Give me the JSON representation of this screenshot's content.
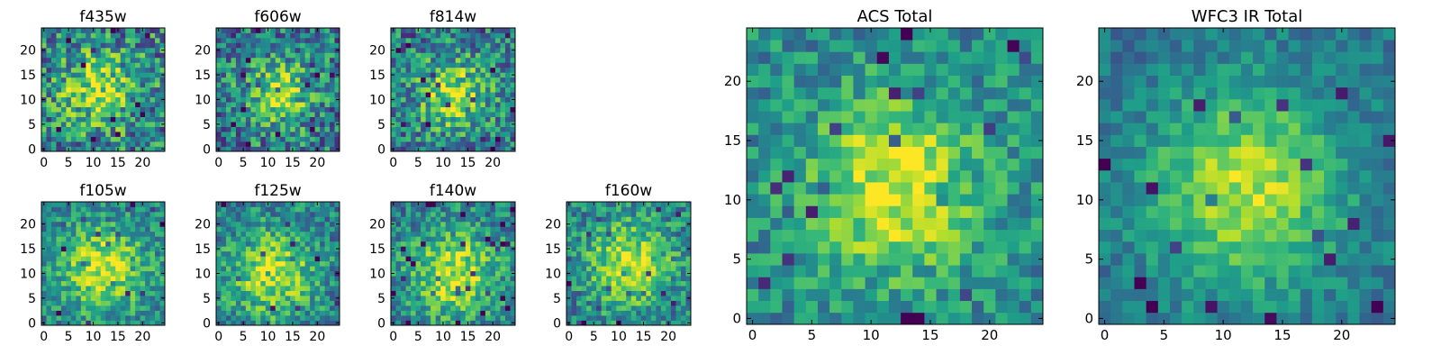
{
  "figure": {
    "background": "#ffffff",
    "colormap": "viridis"
  },
  "chart_data": [
    {
      "type": "heatmap",
      "title": "f435w",
      "xlim": [
        0,
        24
      ],
      "ylim": [
        0,
        24
      ],
      "xticks": [
        0,
        5,
        10,
        15,
        20
      ],
      "yticks": [
        0,
        5,
        10,
        15,
        20
      ],
      "center": [
        11,
        12
      ],
      "sigma": 5,
      "peak": 0.78,
      "noise": 0.34,
      "floor": 0.45,
      "seed": 11
    },
    {
      "type": "heatmap",
      "title": "f606w",
      "xlim": [
        0,
        24
      ],
      "ylim": [
        0,
        24
      ],
      "xticks": [
        0,
        5,
        10,
        15,
        20
      ],
      "yticks": [
        0,
        5,
        10,
        15,
        20
      ],
      "center": [
        12,
        11
      ],
      "sigma": 5,
      "peak": 0.8,
      "noise": 0.32,
      "floor": 0.4,
      "seed": 23
    },
    {
      "type": "heatmap",
      "title": "f814w",
      "xlim": [
        0,
        24
      ],
      "ylim": [
        0,
        24
      ],
      "xticks": [
        0,
        5,
        10,
        15,
        20
      ],
      "yticks": [
        0,
        5,
        10,
        15,
        20
      ],
      "center": [
        12,
        11
      ],
      "sigma": 5,
      "peak": 0.82,
      "noise": 0.3,
      "floor": 0.42,
      "seed": 37
    },
    {
      "type": "heatmap",
      "title": "f105w",
      "xlim": [
        0,
        24
      ],
      "ylim": [
        0,
        24
      ],
      "xticks": [
        0,
        5,
        10,
        15,
        20
      ],
      "yticks": [
        0,
        5,
        10,
        15,
        20
      ],
      "center": [
        12,
        11
      ],
      "sigma": 6,
      "peak": 0.86,
      "noise": 0.22,
      "floor": 0.45,
      "seed": 41
    },
    {
      "type": "heatmap",
      "title": "f125w",
      "xlim": [
        0,
        24
      ],
      "ylim": [
        0,
        24
      ],
      "xticks": [
        0,
        5,
        10,
        15,
        20
      ],
      "yticks": [
        0,
        5,
        10,
        15,
        20
      ],
      "center": [
        11,
        10
      ],
      "sigma": 6,
      "peak": 0.84,
      "noise": 0.24,
      "floor": 0.44,
      "seed": 53
    },
    {
      "type": "heatmap",
      "title": "f140w",
      "xlim": [
        0,
        24
      ],
      "ylim": [
        0,
        24
      ],
      "xticks": [
        0,
        5,
        10,
        15,
        20
      ],
      "yticks": [
        0,
        5,
        10,
        15,
        20
      ],
      "center": [
        12,
        10
      ],
      "sigma": 6,
      "peak": 0.86,
      "noise": 0.24,
      "floor": 0.44,
      "seed": 67
    },
    {
      "type": "heatmap",
      "title": "f160w",
      "xlim": [
        0,
        24
      ],
      "ylim": [
        0,
        24
      ],
      "xticks": [
        0,
        5,
        10,
        15,
        20
      ],
      "yticks": [
        0,
        5,
        10,
        15,
        20
      ],
      "center": [
        12,
        12
      ],
      "sigma": 6,
      "peak": 0.86,
      "noise": 0.24,
      "floor": 0.44,
      "seed": 79
    },
    {
      "type": "heatmap",
      "title": "ACS Total",
      "xlim": [
        0,
        24
      ],
      "ylim": [
        0,
        24
      ],
      "xticks": [
        0,
        5,
        10,
        15,
        20
      ],
      "yticks": [
        0,
        5,
        10,
        15,
        20
      ],
      "center": [
        12,
        11
      ],
      "sigma": 5,
      "peak": 0.88,
      "noise": 0.2,
      "floor": 0.48,
      "seed": 97
    },
    {
      "type": "heatmap",
      "title": "WFC3 IR Total",
      "xlim": [
        0,
        24
      ],
      "ylim": [
        0,
        24
      ],
      "xticks": [
        0,
        5,
        10,
        15,
        20
      ],
      "yticks": [
        0,
        5,
        10,
        15,
        20
      ],
      "center": [
        12,
        11
      ],
      "sigma": 6,
      "peak": 0.92,
      "noise": 0.14,
      "floor": 0.38,
      "seed": 131
    }
  ]
}
